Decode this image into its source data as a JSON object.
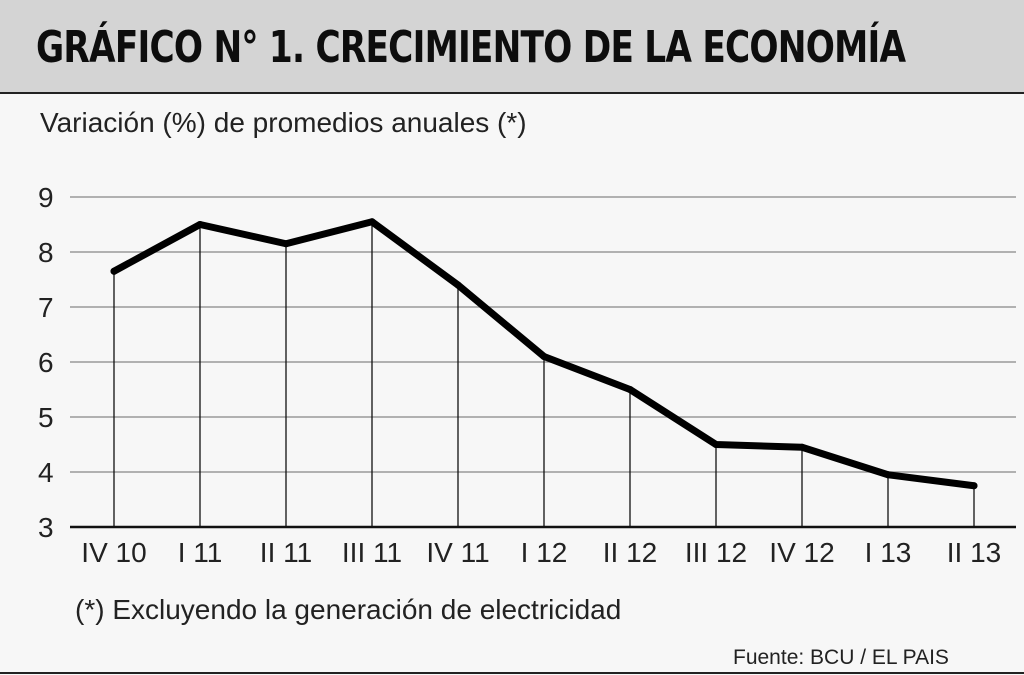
{
  "header": {
    "title": "GRÁFICO N° 1. CRECIMIENTO DE LA ECONOMÍA"
  },
  "subtitle": "Variación (%) de promedios anuales (*)",
  "note": "(*) Excluyendo la generación de electricidad",
  "source": "Fuente:  BCU  / EL PAIS",
  "chart_data": {
    "type": "line",
    "title": "GRÁFICO N° 1. CRECIMIENTO DE LA ECONOMÍA",
    "subtitle": "Variación (%) de promedios anuales (*)",
    "categories": [
      "IV 10",
      "I 11",
      "II 11",
      "III 11",
      "IV 11",
      "I 12",
      "II 12",
      "III 12",
      "IV 12",
      "I 13",
      "II 13"
    ],
    "series": [
      {
        "values": [
          7.65,
          8.5,
          8.15,
          8.55,
          7.4,
          6.1,
          5.5,
          4.5,
          4.45,
          3.95,
          3.75
        ]
      }
    ],
    "ylim": [
      3,
      9
    ],
    "yticks": [
      3,
      4,
      5,
      6,
      7,
      8,
      9
    ],
    "xlabel": "",
    "ylabel": "",
    "grid": true,
    "line_color": "#000000",
    "grid_color": "#9a9a9a"
  }
}
